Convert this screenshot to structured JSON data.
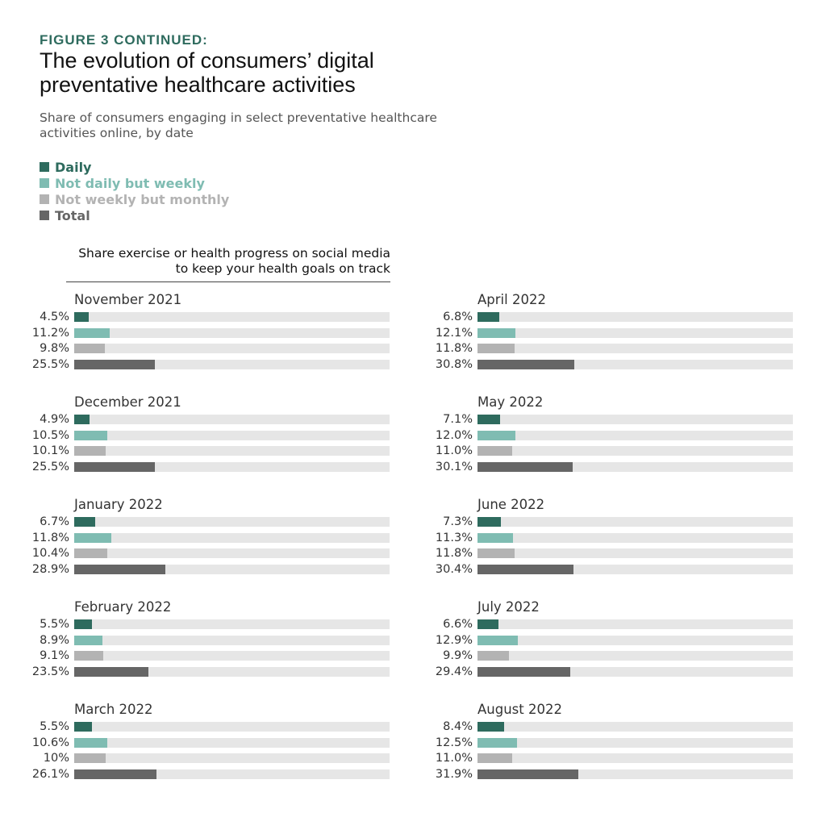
{
  "header": {
    "kicker": "FIGURE 3 CONTINUED:",
    "title": "The evolution of consumers’ digital preventative healthcare activities",
    "subtitle": "Share of consumers engaging in select preventative healthcare activities online, by date"
  },
  "legend": [
    {
      "label": "Daily",
      "color": "#2e6b5e"
    },
    {
      "label": "Not daily but weekly",
      "color": "#7fbcb2"
    },
    {
      "label": "Not weekly but monthly",
      "color": "#b3b3b3"
    },
    {
      "label": "Total",
      "color": "#666666"
    }
  ],
  "section_title": "Share exercise or health progress on social media to keep your health goals on track",
  "chart_data": {
    "type": "bar",
    "orientation": "horizontal",
    "xlim": [
      0,
      100
    ],
    "series_names": [
      "Daily",
      "Not daily but weekly",
      "Not weekly but monthly",
      "Total"
    ],
    "colors": [
      "#2e6b5e",
      "#7fbcb2",
      "#b3b3b3",
      "#666666"
    ],
    "months": [
      {
        "month": "November 2021",
        "values": [
          4.5,
          11.2,
          9.8,
          25.5
        ],
        "labels": [
          "4.5%",
          "11.2%",
          "9.8%",
          "25.5%"
        ]
      },
      {
        "month": "December 2021",
        "values": [
          4.9,
          10.5,
          10.1,
          25.5
        ],
        "labels": [
          "4.9%",
          "10.5%",
          "10.1%",
          "25.5%"
        ]
      },
      {
        "month": "January 2022",
        "values": [
          6.7,
          11.8,
          10.4,
          28.9
        ],
        "labels": [
          "6.7%",
          "11.8%",
          "10.4%",
          "28.9%"
        ]
      },
      {
        "month": "February 2022",
        "values": [
          5.5,
          8.9,
          9.1,
          23.5
        ],
        "labels": [
          "5.5%",
          "8.9%",
          "9.1%",
          "23.5%"
        ]
      },
      {
        "month": "March 2022",
        "values": [
          5.5,
          10.6,
          10,
          26.1
        ],
        "labels": [
          "5.5%",
          "10.6%",
          "10%",
          "26.1%"
        ]
      },
      {
        "month": "April 2022",
        "values": [
          6.8,
          12.1,
          11.8,
          30.8
        ],
        "labels": [
          "6.8%",
          "12.1%",
          "11.8%",
          "30.8%"
        ]
      },
      {
        "month": "May 2022",
        "values": [
          7.1,
          12.0,
          11.0,
          30.1
        ],
        "labels": [
          "7.1%",
          "12.0%",
          "11.0%",
          "30.1%"
        ]
      },
      {
        "month": "June 2022",
        "values": [
          7.3,
          11.3,
          11.8,
          30.4
        ],
        "labels": [
          "7.3%",
          "11.3%",
          "11.8%",
          "30.4%"
        ]
      },
      {
        "month": "July 2022",
        "values": [
          6.6,
          12.9,
          9.9,
          29.4
        ],
        "labels": [
          "6.6%",
          "12.9%",
          "9.9%",
          "29.4%"
        ]
      },
      {
        "month": "August 2022",
        "values": [
          8.4,
          12.5,
          11.0,
          31.9
        ],
        "labels": [
          "8.4%",
          "12.5%",
          "11.0%",
          "31.9%"
        ]
      }
    ]
  }
}
